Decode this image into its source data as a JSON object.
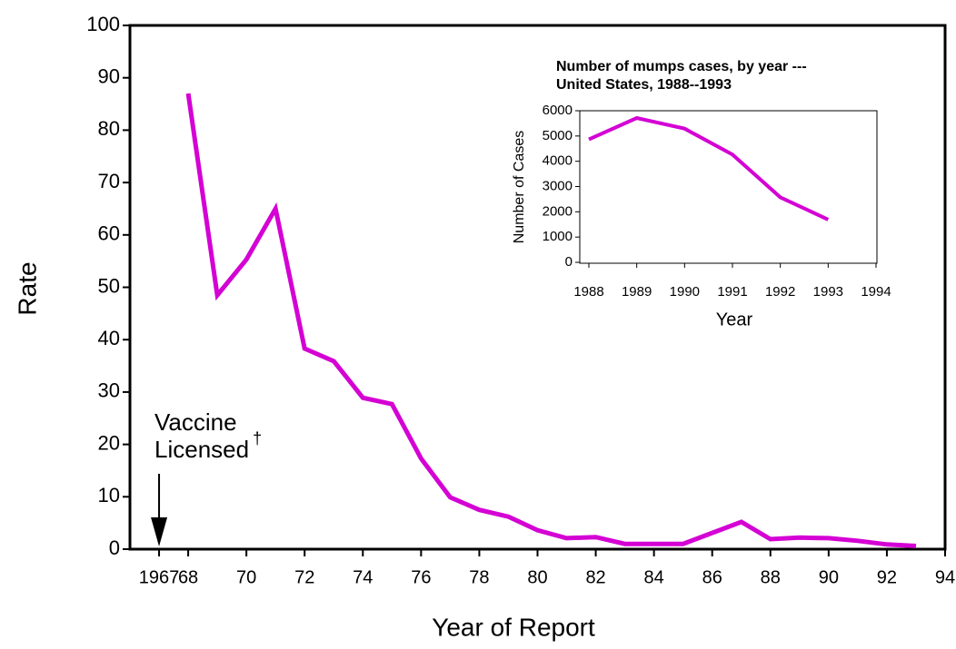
{
  "chart_data": [
    {
      "type": "line",
      "x_label": "Year of Report",
      "y_label": "Rate",
      "x": [
        1968,
        1969,
        1970,
        1971,
        1972,
        1973,
        1974,
        1975,
        1976,
        1977,
        1978,
        1979,
        1980,
        1981,
        1982,
        1983,
        1984,
        1985,
        1986,
        1987,
        1988,
        1989,
        1990,
        1991,
        1992,
        1993
      ],
      "series": [
        {
          "color": "#d400d4",
          "values": [
            87,
            48.5,
            55.3,
            65,
            38.3,
            35.9,
            28.9,
            27.7,
            17.3,
            9.9,
            7.5,
            6.2,
            3.6,
            2.1,
            2.3,
            1,
            1,
            1,
            3.1,
            5.2,
            1.9,
            2.2,
            2.1,
            1.6,
            0.9,
            0.6
          ]
        }
      ],
      "xlim": [
        1966,
        1994
      ],
      "xticks": [
        1967,
        {
          "value": 1968,
          "label": "68"
        },
        {
          "value": 1970,
          "label": "70"
        },
        {
          "value": 1972,
          "label": "72"
        },
        {
          "value": 1974,
          "label": "74"
        },
        {
          "value": 1976,
          "label": "76"
        },
        {
          "value": 1978,
          "label": "78"
        },
        {
          "value": 1980,
          "label": "80"
        },
        {
          "value": 1982,
          "label": "82"
        },
        {
          "value": 1984,
          "label": "84"
        },
        {
          "value": 1986,
          "label": "86"
        },
        {
          "value": 1988,
          "label": "88"
        },
        {
          "value": 1990,
          "label": "90"
        },
        {
          "value": 1992,
          "label": "92"
        },
        {
          "value": 1994,
          "label": "94"
        }
      ],
      "ylim": [
        0,
        100
      ],
      "yticks": [
        0,
        10,
        20,
        30,
        40,
        50,
        60,
        70,
        80,
        90,
        100
      ],
      "annotation": {
        "x": 1967,
        "lines": [
          "Vaccine",
          "Licensed"
        ],
        "symbol": "†"
      }
    },
    {
      "type": "line",
      "title": [
        "Number of mumps cases, by year ---",
        "United States, 1988--1993"
      ],
      "x_label": "Year",
      "y_label": "Number of Cases",
      "x": [
        1988,
        1989,
        1990,
        1991,
        1992,
        1993
      ],
      "series": [
        {
          "color": "#d400d4",
          "values": [
            4866,
            5712,
            5292,
            4264,
            2572,
            1692
          ]
        }
      ],
      "xlim": [
        1988,
        1994
      ],
      "xticks": [
        1988,
        1989,
        1990,
        1991,
        1992,
        1993,
        1994
      ],
      "ylim": [
        0,
        6000
      ],
      "yticks": [
        0,
        1000,
        2000,
        3000,
        4000,
        5000,
        6000
      ]
    }
  ]
}
